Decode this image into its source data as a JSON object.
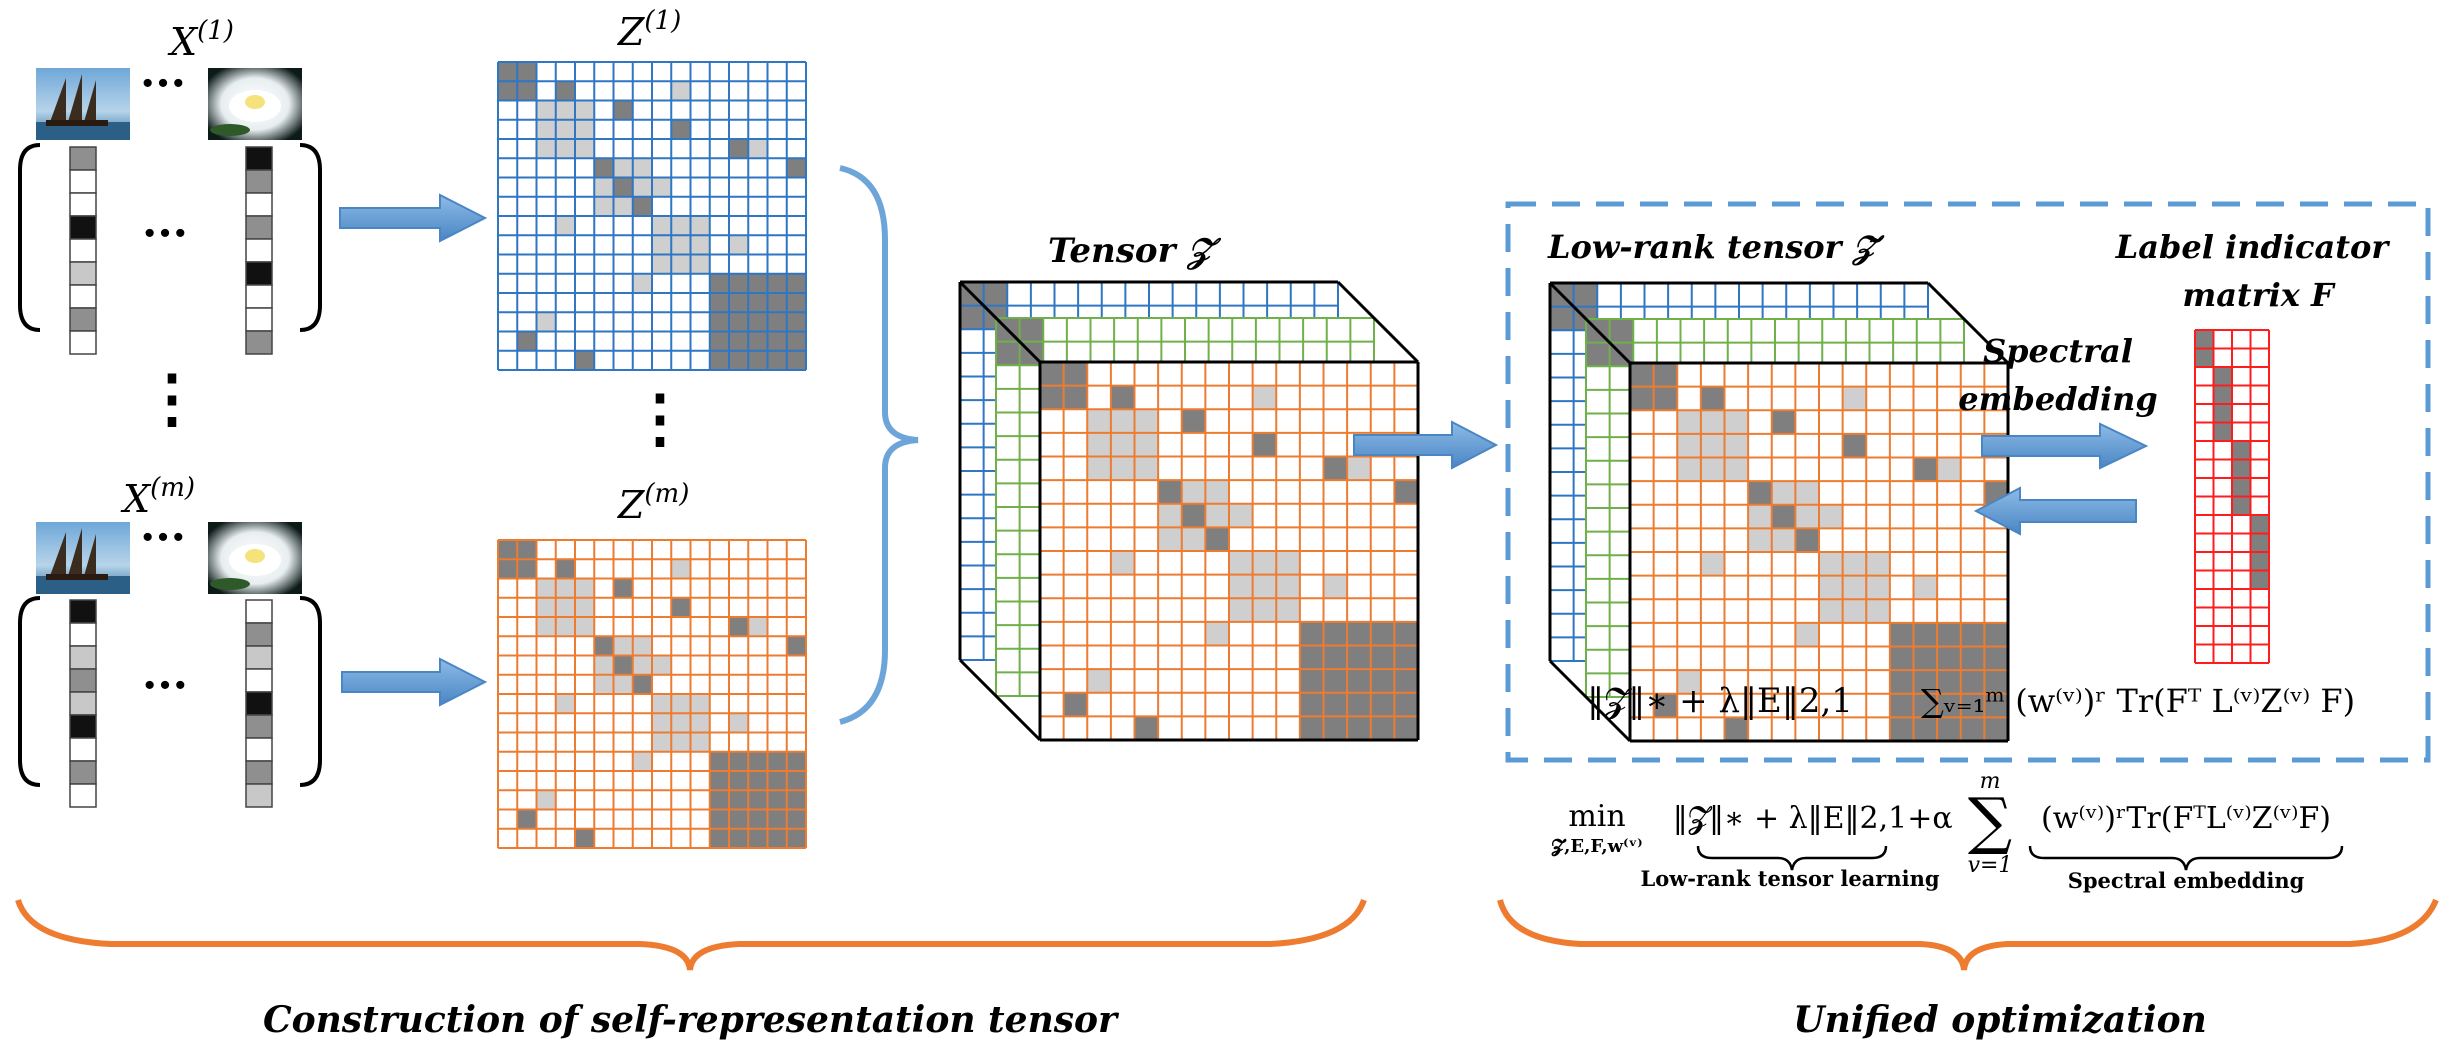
{
  "colors": {
    "blue": "#2f76c3",
    "orange": "#ee7c30",
    "green": "#6fb04a",
    "red": "#ff1c1c",
    "brace_blue": "#6ea5d8",
    "arrow_blue": "#5b9bd5",
    "dark_cell": "#7f7f7f",
    "light_cell": "#cfcfcf",
    "dashed_box": "#5b9bd5"
  },
  "icons": {
    "image_a": "sailboat-photo-icon",
    "image_b": "water-lily-photo-icon"
  },
  "views": {
    "first": {
      "x_label": "X^(1)",
      "z_label": "Z^(1)"
    },
    "last": {
      "x_label": "X^(m)",
      "z_label": "Z^(m)"
    },
    "dots_h": "···",
    "dots_v": "⋮"
  },
  "tensor": {
    "label": "Tensor 𝒵"
  },
  "optimization_box": {
    "low_rank_label": "Low-rank tensor  𝒵̃",
    "label_indicator_line1": "Label indicator",
    "label_indicator_line2": "matrix F",
    "spectral_line1": "Spectral",
    "spectral_line2": "embedding",
    "formula_left": "‖𝓩‖∗ + λ‖E‖2,1",
    "formula_right": "∑ᵥ₌₁ᵐ (w⁽ᵛ⁾)ʳ Tr(Fᵀ L⁽ᵛ⁾Z⁽ᵛ⁾ F)"
  },
  "objective": {
    "min": "min",
    "min_sub": "𝓩,E,F,w⁽ᵛ⁾",
    "term1": "‖𝓩‖∗ + λ‖E‖2,1",
    "term1_label": "Low-rank tensor learning",
    "plus_alpha": "+α",
    "sum_top": "m",
    "sum_symbol": "∑",
    "sum_bottom": "v=1",
    "term2": "(w⁽ᵛ⁾)ʳTr(FᵀL⁽ᵛ⁾Z⁽ᵛ⁾F)",
    "term2_label": "Spectral embedding"
  },
  "captions": {
    "left": "Construction of self-representation tensor",
    "right": "Unified optimization"
  }
}
